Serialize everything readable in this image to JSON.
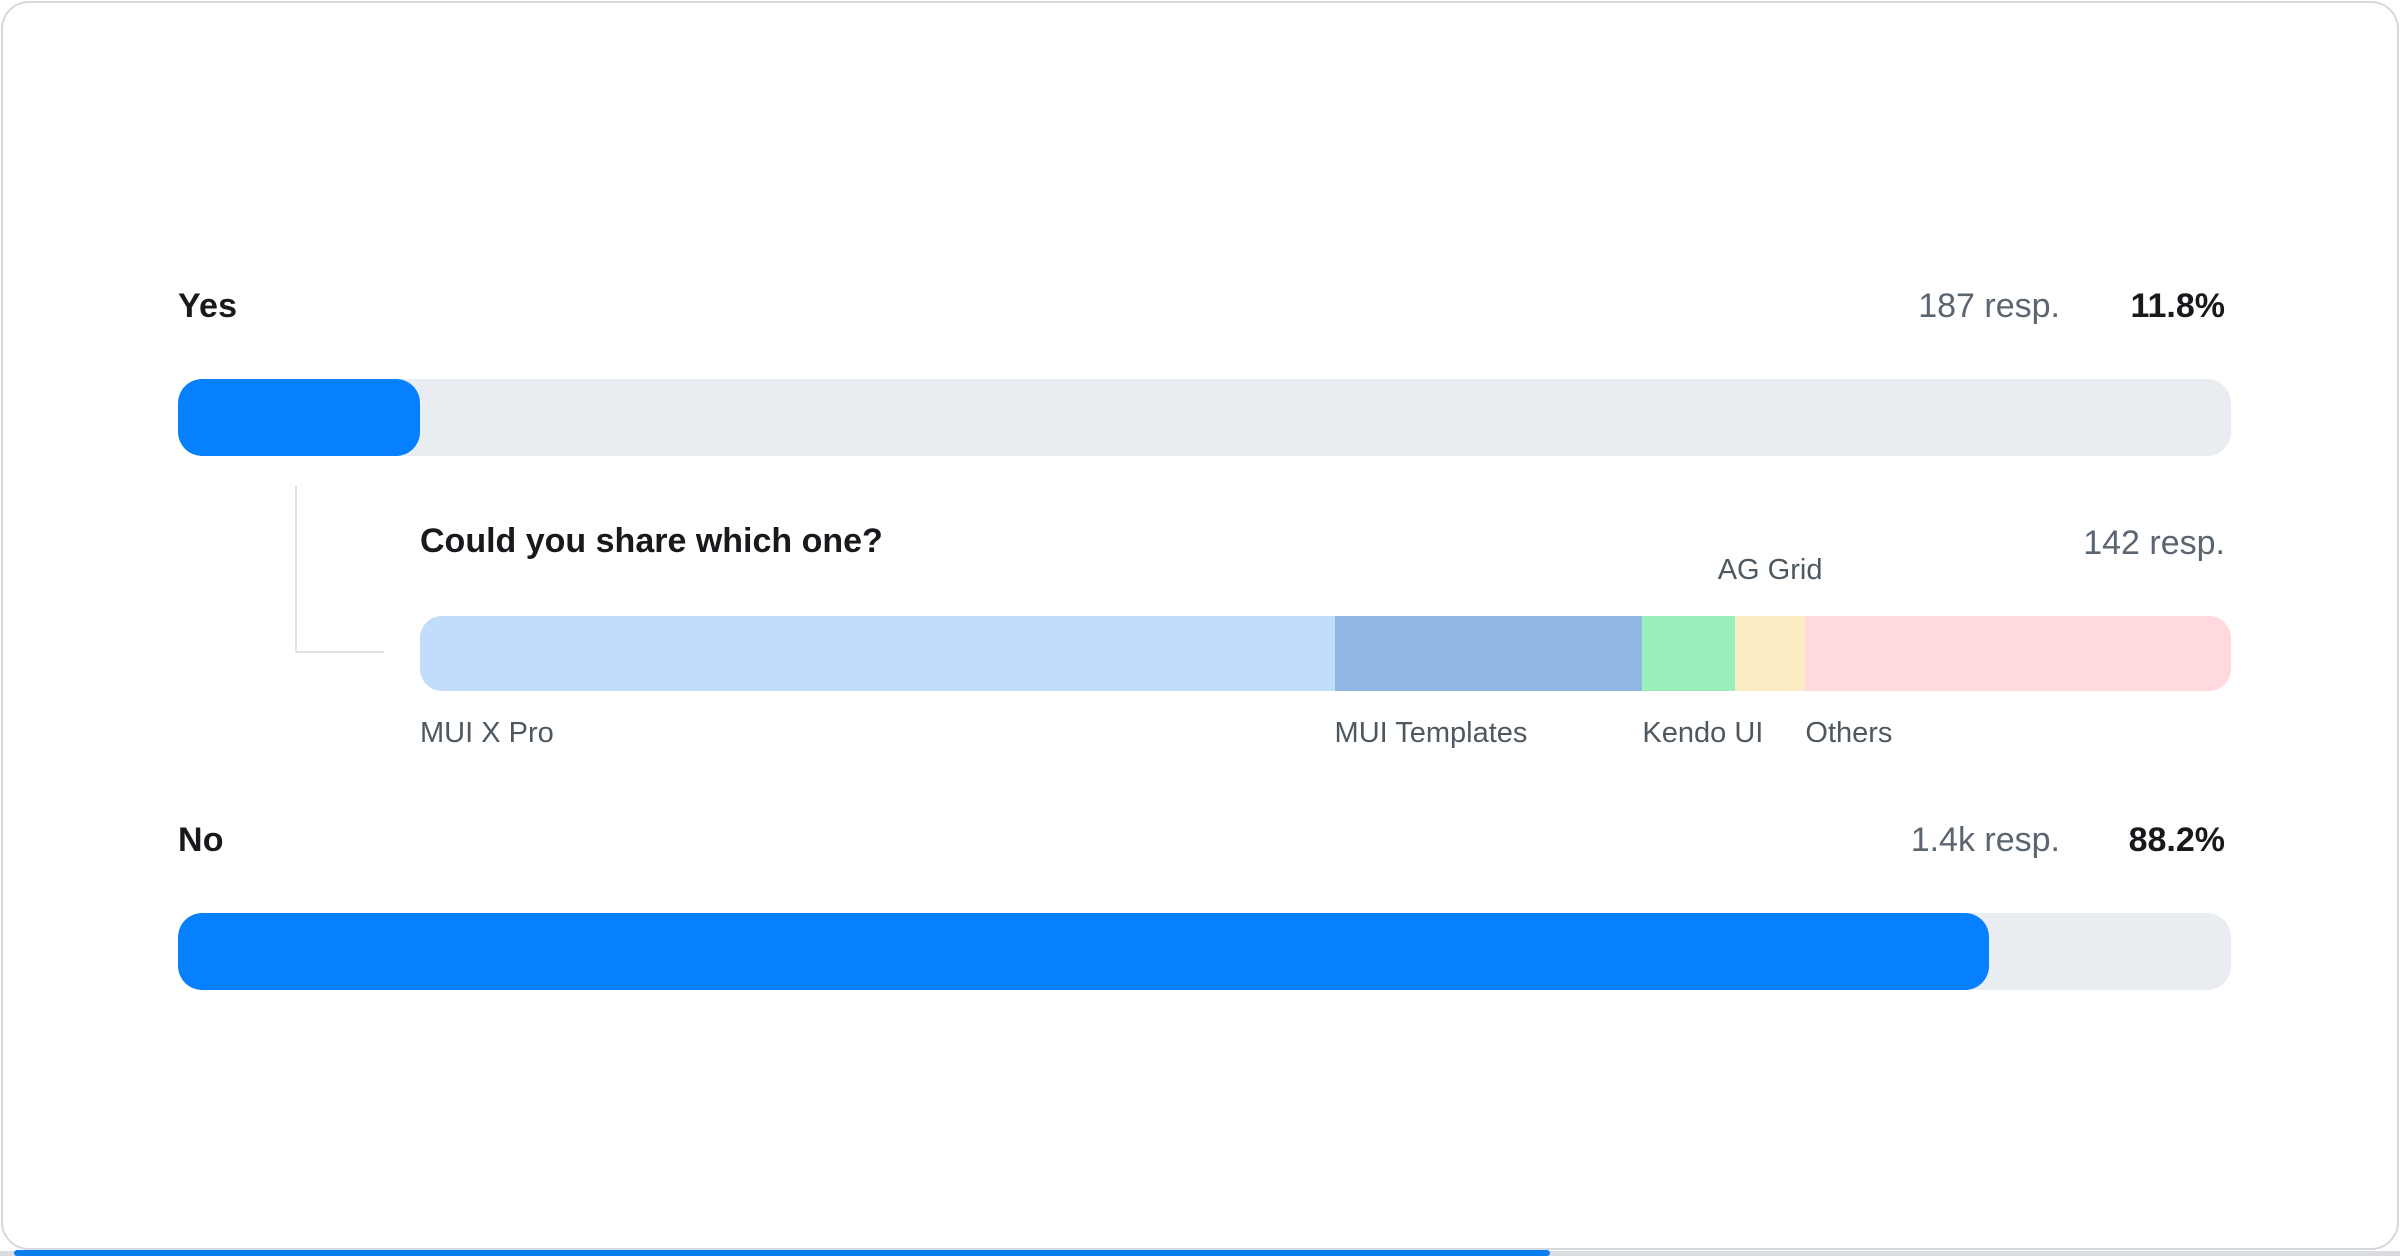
{
  "accent_color": "#0780ff",
  "track_color": "#e9ecf0",
  "rows": {
    "yes": {
      "label": "Yes",
      "responses": "187 resp.",
      "percent": "11.8%",
      "pct": 11.8
    },
    "no": {
      "label": "No",
      "responses": "1.4k resp.",
      "percent": "88.2%",
      "pct": 88.2
    }
  },
  "followup": {
    "title": "Could you share which one?",
    "responses": "142 resp.",
    "segments": [
      {
        "label": "MUI X Pro",
        "pct": 50.5,
        "color": "#c1ddfb",
        "label_position": "below"
      },
      {
        "label": "MUI Templates",
        "pct": 17.0,
        "color": "#91b7e5",
        "label_position": "below"
      },
      {
        "label": "Kendo UI",
        "pct": 5.1,
        "color": "#9aeebb",
        "label_position": "below"
      },
      {
        "label": "AG Grid",
        "pct": 3.9,
        "color": "#fcecc3",
        "label_position": "above"
      },
      {
        "label": "Others",
        "pct": 23.5,
        "color": "#ffd9dd",
        "label_position": "below"
      }
    ]
  },
  "chart_data": [
    {
      "type": "bar",
      "subtype": "horizontal-progress",
      "title": "",
      "categories": [
        "Yes",
        "No"
      ],
      "values": [
        11.8,
        88.2
      ],
      "value_labels": [
        "187 resp.",
        "1.4k resp."
      ],
      "unit": "%",
      "xlim": [
        0,
        100
      ],
      "bar_color": "#0780ff",
      "track_color": "#e9ecf0",
      "grid": false,
      "legend": false
    },
    {
      "type": "bar",
      "subtype": "stacked-horizontal",
      "title": "Could you share which one?",
      "respondents_label": "142 resp.",
      "categories": [
        "MUI X Pro",
        "MUI Templates",
        "Kendo UI",
        "AG Grid",
        "Others"
      ],
      "values": [
        50.5,
        17.0,
        5.1,
        3.9,
        23.5
      ],
      "unit": "% of bar width (estimated from segment widths)",
      "colors": [
        "#c1ddfb",
        "#91b7e5",
        "#9aeebb",
        "#fcecc3",
        "#ffd9dd"
      ],
      "grid": false,
      "legend": false
    }
  ]
}
